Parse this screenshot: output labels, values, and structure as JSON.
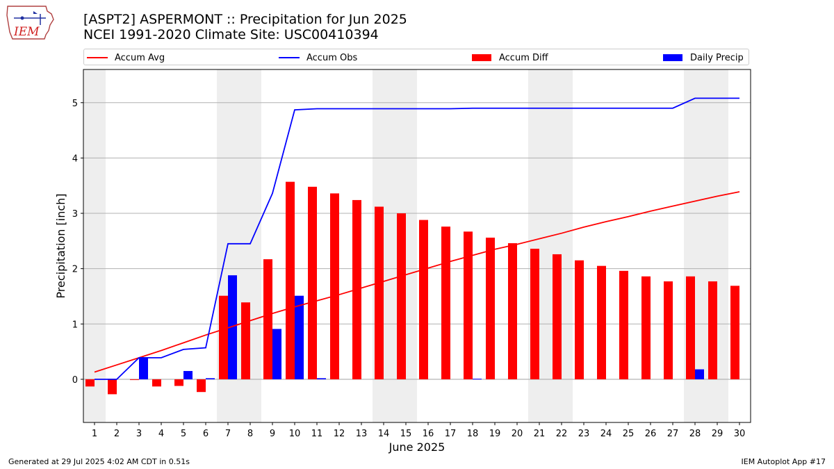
{
  "logo": {
    "text": "IEM",
    "icon": "iem-iowa-logo-icon"
  },
  "header": {
    "title_line1": "[ASPT2] ASPERMONT :: Precipitation for Jun 2025",
    "title_line2": "NCEI 1991-2020 Climate Site: USC00410394"
  },
  "legend": {
    "items": [
      {
        "label": "Accum Avg",
        "kind": "line",
        "color": "#ff0000"
      },
      {
        "label": "Accum Obs",
        "kind": "line",
        "color": "#0000ff"
      },
      {
        "label": "Accum Diff",
        "kind": "box",
        "color": "#ff0000"
      },
      {
        "label": "Daily Precip",
        "kind": "box",
        "color": "#0000ff"
      }
    ]
  },
  "footer": {
    "left": "Generated at 29 Jul 2025 4:02 AM CDT in 0.51s",
    "right": "IEM Autoplot App #17"
  },
  "chart_data": {
    "type": "bar",
    "xlabel": "June 2025",
    "ylabel": "Precipitation [inch]",
    "xlim": [
      0.5,
      30.5
    ],
    "ylim": [
      -0.78,
      5.6
    ],
    "yticks": [
      0,
      1,
      2,
      3,
      4,
      5
    ],
    "categories": [
      "1",
      "2",
      "3",
      "4",
      "5",
      "6",
      "7",
      "8",
      "9",
      "10",
      "11",
      "12",
      "13",
      "14",
      "15",
      "16",
      "17",
      "18",
      "19",
      "20",
      "21",
      "22",
      "23",
      "24",
      "25",
      "26",
      "27",
      "28",
      "29",
      "30"
    ],
    "weekend_bands": [
      [
        0.5,
        1.5
      ],
      [
        6.5,
        8.5
      ],
      [
        13.5,
        15.5
      ],
      [
        20.5,
        22.5
      ],
      [
        27.5,
        29.5
      ]
    ],
    "grid": "horizontal",
    "legend_position": "top",
    "series": [
      {
        "name": "Accum Avg",
        "kind": "line",
        "color": "#ff0000",
        "values": [
          0.13,
          0.26,
          0.39,
          0.52,
          0.66,
          0.8,
          0.93,
          1.06,
          1.19,
          1.31,
          1.42,
          1.53,
          1.65,
          1.77,
          1.89,
          2.01,
          2.13,
          2.24,
          2.35,
          2.44,
          2.54,
          2.64,
          2.75,
          2.85,
          2.94,
          3.04,
          3.13,
          3.22,
          3.31,
          3.39
        ]
      },
      {
        "name": "Accum Obs",
        "kind": "line",
        "color": "#0000ff",
        "values": [
          0.0,
          0.0,
          0.39,
          0.39,
          0.54,
          0.57,
          2.45,
          2.45,
          3.36,
          4.87,
          4.89,
          4.89,
          4.89,
          4.89,
          4.89,
          4.89,
          4.89,
          4.9,
          4.9,
          4.9,
          4.9,
          4.9,
          4.9,
          4.9,
          4.9,
          4.9,
          4.9,
          5.08,
          5.08,
          5.08
        ]
      },
      {
        "name": "Accum Diff",
        "kind": "bar",
        "color": "#ff0000",
        "values": [
          -0.13,
          -0.27,
          -0.01,
          -0.13,
          -0.12,
          -0.23,
          1.51,
          1.39,
          2.17,
          3.57,
          3.48,
          3.36,
          3.24,
          3.12,
          3.0,
          2.88,
          2.76,
          2.67,
          2.56,
          2.46,
          2.36,
          2.26,
          2.15,
          2.05,
          1.96,
          1.86,
          1.77,
          1.86,
          1.77,
          1.69
        ]
      },
      {
        "name": "Daily Precip",
        "kind": "bar",
        "color": "#0000ff",
        "values": [
          0.0,
          0.0,
          0.39,
          0.0,
          0.15,
          0.02,
          1.88,
          0.0,
          0.91,
          1.51,
          0.02,
          0.0,
          0.0,
          0.0,
          0.0,
          0.0,
          0.0,
          0.01,
          0.0,
          0.0,
          0.0,
          0.0,
          0.0,
          0.0,
          0.0,
          0.0,
          0.0,
          0.18,
          0.0,
          0.0
        ]
      }
    ]
  }
}
